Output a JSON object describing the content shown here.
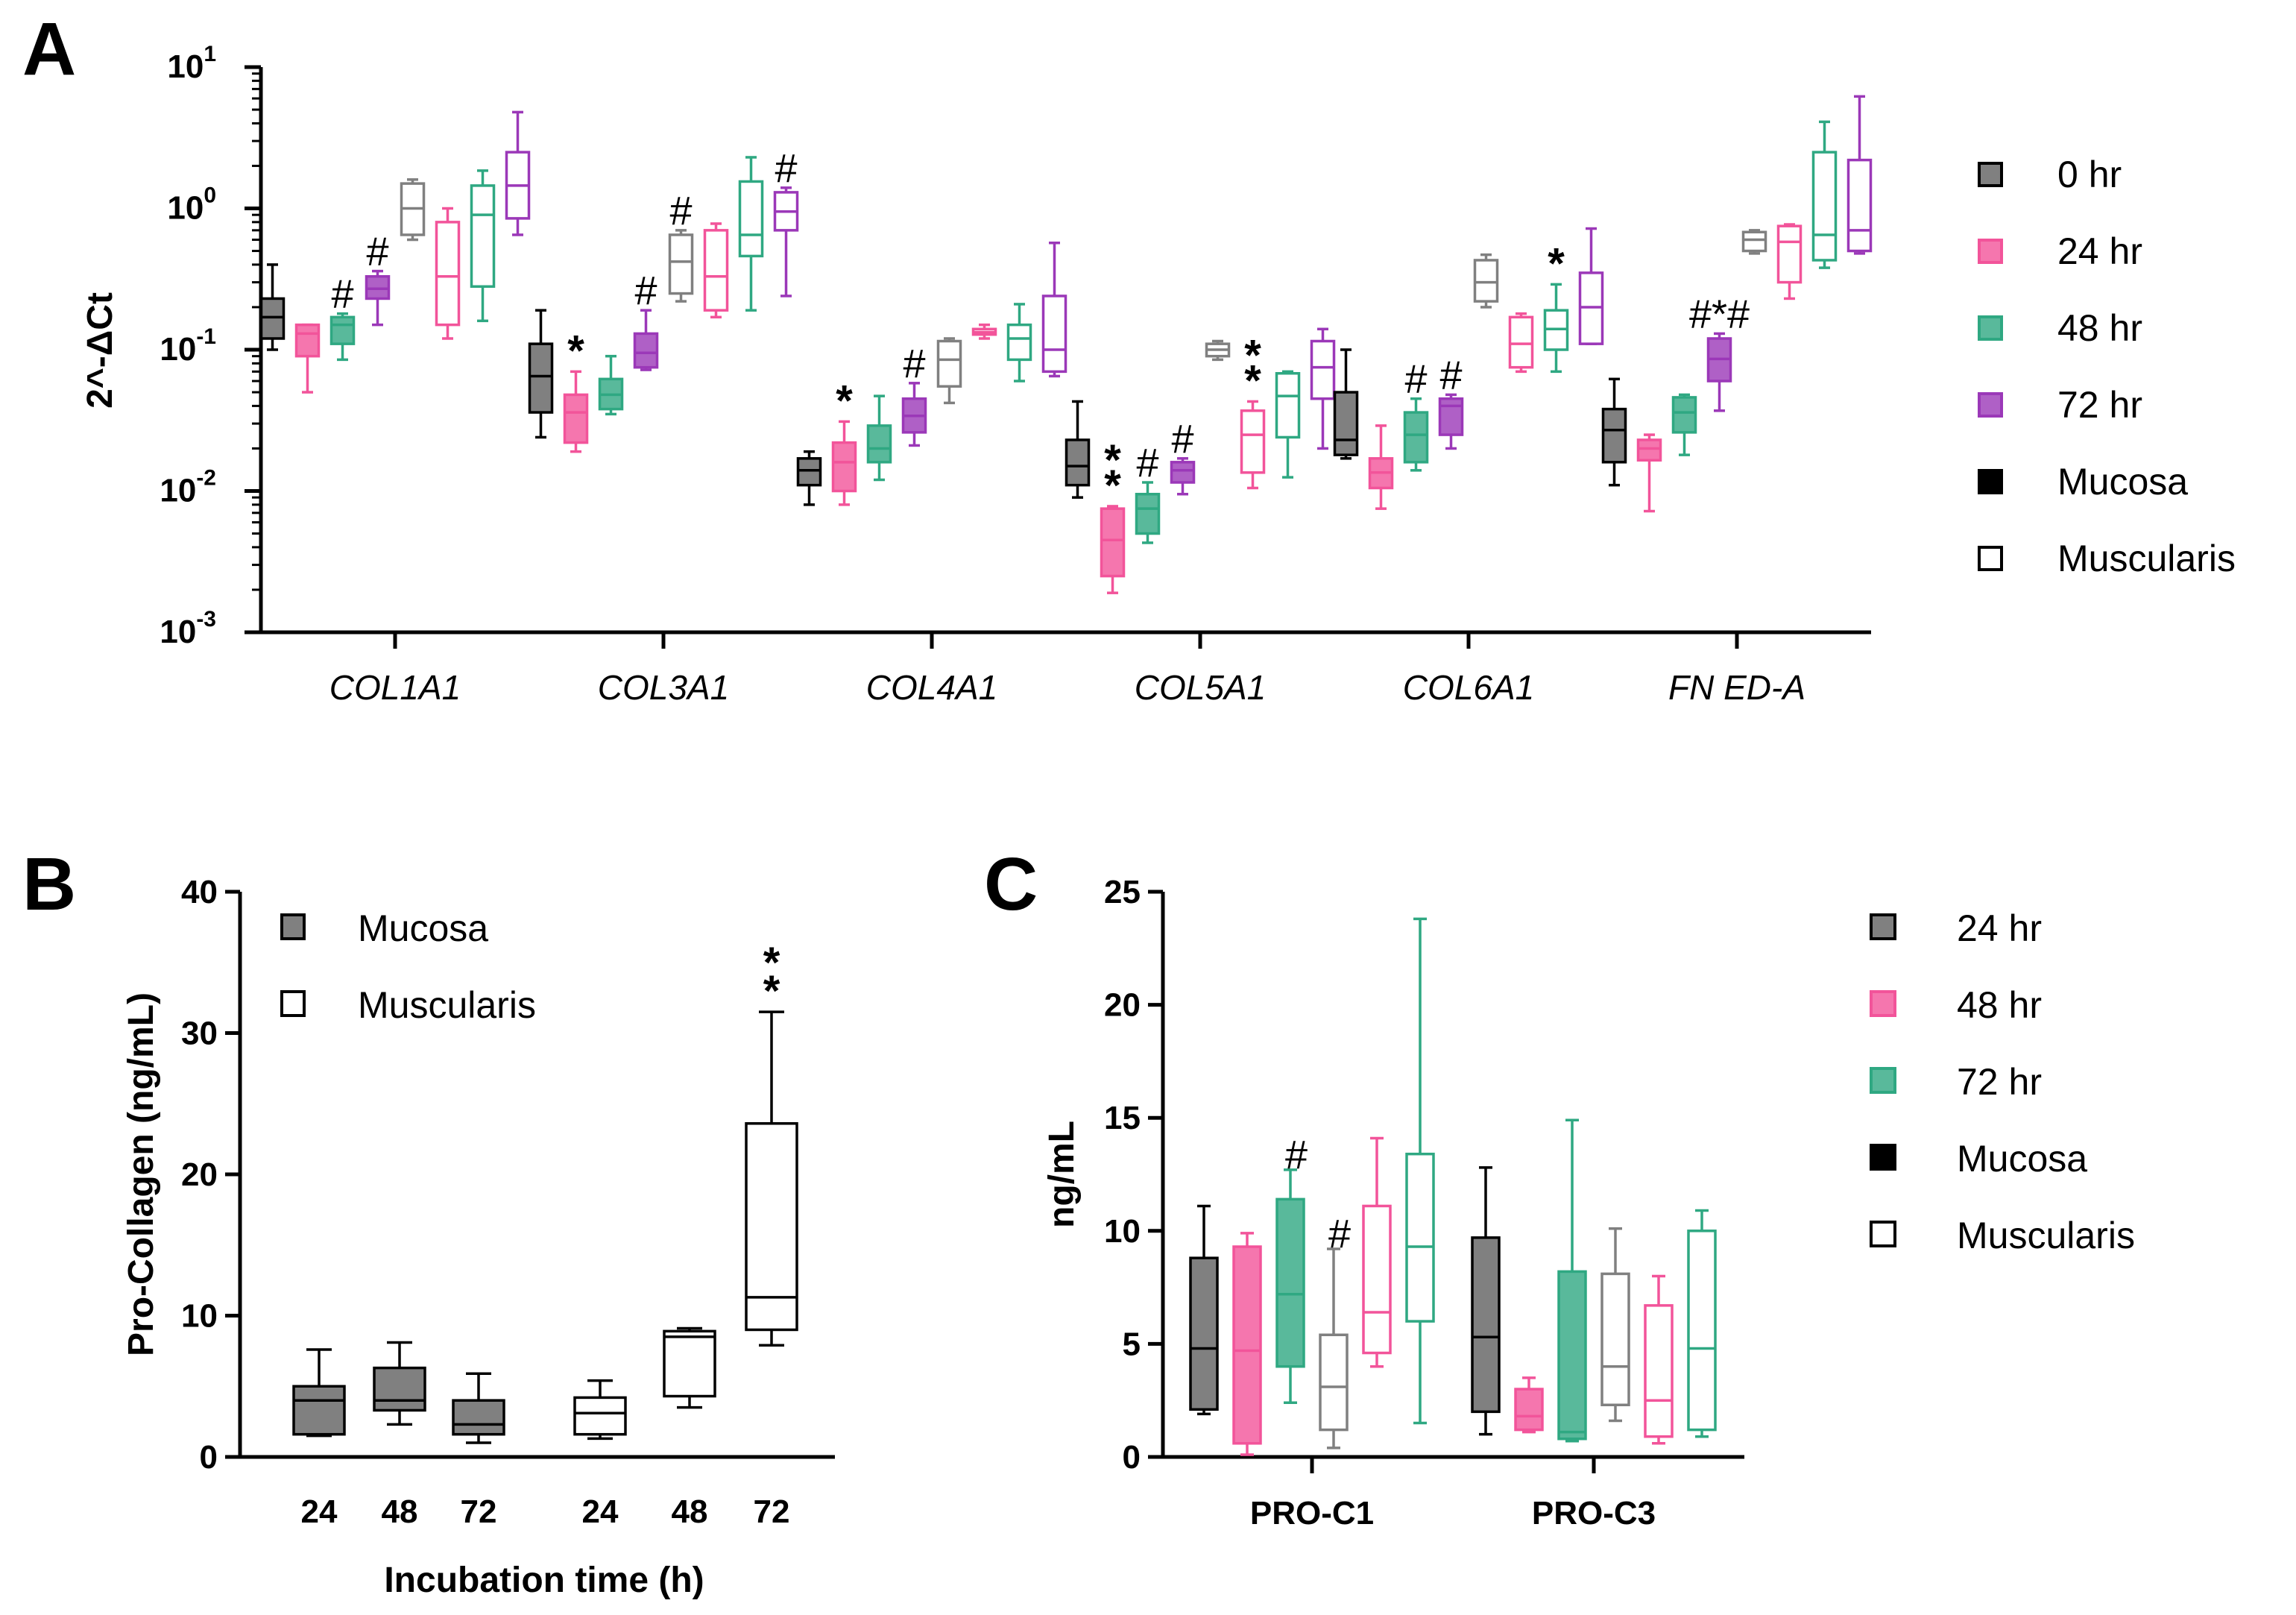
{
  "chart_data": [
    {
      "panel": "A",
      "type": "box",
      "scale": "log10",
      "ylabel": "2^-ΔCt",
      "ylim": [
        0.001,
        10
      ],
      "yticks": [
        {
          "value": 10,
          "base": "10",
          "exp": "1"
        },
        {
          "value": 1,
          "base": "10",
          "exp": "0"
        },
        {
          "value": 0.1,
          "base": "10",
          "exp": "-1"
        },
        {
          "value": 0.01,
          "base": "10",
          "exp": "-2"
        },
        {
          "value": 0.001,
          "base": "10",
          "exp": "-3"
        }
      ],
      "categories": [
        "COL1A1",
        "COL3A1",
        "COL4A1",
        "COL5A1",
        "COL6A1",
        "FN ED-A"
      ],
      "legend": [
        {
          "label": "0 hr",
          "color": "#808080",
          "filled": true
        },
        {
          "label": "24 hr",
          "color": "#f2549a",
          "filled": true
        },
        {
          "label": "48 hr",
          "color": "#2fa882",
          "filled": true
        },
        {
          "label": "72 hr",
          "color": "#9b38b8",
          "filled": true
        },
        {
          "label": "Mucosa",
          "color": "#000000",
          "filled": true
        },
        {
          "label": "Muscularis",
          "color": "#000000",
          "filled": false
        }
      ],
      "series_order": [
        "Mucosa 0 hr",
        "Mucosa 24 hr",
        "Mucosa 48 hr",
        "Mucosa 72 hr",
        "Muscularis 0 hr",
        "Muscularis 24 hr",
        "Muscularis 48 hr",
        "Muscularis 72 hr"
      ],
      "boxes": [
        [
          {
            "min": 0.1,
            "q1": 0.12,
            "median": 0.17,
            "q3": 0.23,
            "max": 0.4,
            "sig": ""
          },
          {
            "min": 0.05,
            "q1": 0.09,
            "median": 0.13,
            "q3": 0.15,
            "max": 0.15,
            "sig": ""
          },
          {
            "min": 0.085,
            "q1": 0.11,
            "median": 0.15,
            "q3": 0.17,
            "max": 0.18,
            "sig": "#"
          },
          {
            "min": 0.15,
            "q1": 0.23,
            "median": 0.27,
            "q3": 0.33,
            "max": 0.36,
            "sig": "#"
          },
          {
            "min": 0.6,
            "q1": 0.65,
            "median": 1.0,
            "q3": 1.5,
            "max": 1.6,
            "sig": ""
          },
          {
            "min": 0.12,
            "q1": 0.15,
            "median": 0.33,
            "q3": 0.8,
            "max": 1.0,
            "sig": ""
          },
          {
            "min": 0.16,
            "q1": 0.28,
            "median": 0.9,
            "q3": 1.45,
            "max": 1.85,
            "sig": ""
          },
          {
            "min": 0.65,
            "q1": 0.85,
            "median": 1.45,
            "q3": 2.5,
            "max": 4.8,
            "sig": ""
          }
        ],
        [
          {
            "min": 0.024,
            "q1": 0.036,
            "median": 0.065,
            "q3": 0.11,
            "max": 0.19,
            "sig": ""
          },
          {
            "min": 0.019,
            "q1": 0.022,
            "median": 0.036,
            "q3": 0.048,
            "max": 0.07,
            "sig": "*"
          },
          {
            "min": 0.035,
            "q1": 0.038,
            "median": 0.048,
            "q3": 0.062,
            "max": 0.09,
            "sig": ""
          },
          {
            "min": 0.072,
            "q1": 0.075,
            "median": 0.095,
            "q3": 0.13,
            "max": 0.19,
            "sig": "#"
          },
          {
            "min": 0.22,
            "q1": 0.25,
            "median": 0.42,
            "q3": 0.65,
            "max": 0.7,
            "sig": "#"
          },
          {
            "min": 0.17,
            "q1": 0.19,
            "median": 0.33,
            "q3": 0.7,
            "max": 0.78,
            "sig": ""
          },
          {
            "min": 0.19,
            "q1": 0.46,
            "median": 0.65,
            "q3": 1.55,
            "max": 2.3,
            "sig": ""
          },
          {
            "min": 0.24,
            "q1": 0.7,
            "median": 0.95,
            "q3": 1.3,
            "max": 1.4,
            "sig": "#"
          }
        ],
        [
          {
            "min": 0.008,
            "q1": 0.011,
            "median": 0.014,
            "q3": 0.017,
            "max": 0.019,
            "sig": ""
          },
          {
            "min": 0.008,
            "q1": 0.01,
            "median": 0.016,
            "q3": 0.022,
            "max": 0.031,
            "sig": "*"
          },
          {
            "min": 0.012,
            "q1": 0.016,
            "median": 0.02,
            "q3": 0.029,
            "max": 0.047,
            "sig": ""
          },
          {
            "min": 0.021,
            "q1": 0.026,
            "median": 0.034,
            "q3": 0.045,
            "max": 0.058,
            "sig": "#"
          },
          {
            "min": 0.042,
            "q1": 0.055,
            "median": 0.085,
            "q3": 0.115,
            "max": 0.12,
            "sig": ""
          },
          {
            "min": 0.12,
            "q1": 0.128,
            "median": 0.133,
            "q3": 0.14,
            "max": 0.15,
            "sig": ""
          },
          {
            "min": 0.06,
            "q1": 0.085,
            "median": 0.12,
            "q3": 0.15,
            "max": 0.21,
            "sig": ""
          },
          {
            "min": 0.065,
            "q1": 0.07,
            "median": 0.1,
            "q3": 0.24,
            "max": 0.57,
            "sig": ""
          }
        ],
        [
          {
            "min": 0.009,
            "q1": 0.011,
            "median": 0.015,
            "q3": 0.023,
            "max": 0.043,
            "sig": ""
          },
          {
            "min": 0.0019,
            "q1": 0.0025,
            "median": 0.0045,
            "q3": 0.0075,
            "max": 0.0078,
            "sig": "**"
          },
          {
            "min": 0.0043,
            "q1": 0.005,
            "median": 0.0075,
            "q3": 0.0095,
            "max": 0.0115,
            "sig": "#"
          },
          {
            "min": 0.0095,
            "q1": 0.0115,
            "median": 0.014,
            "q3": 0.016,
            "max": 0.017,
            "sig": "#"
          },
          {
            "min": 0.085,
            "q1": 0.09,
            "median": 0.1,
            "q3": 0.11,
            "max": 0.115,
            "sig": ""
          },
          {
            "min": 0.0105,
            "q1": 0.0135,
            "median": 0.025,
            "q3": 0.037,
            "max": 0.043,
            "sig": "**"
          },
          {
            "min": 0.0125,
            "q1": 0.024,
            "median": 0.047,
            "q3": 0.068,
            "max": 0.07,
            "sig": ""
          },
          {
            "min": 0.02,
            "q1": 0.045,
            "median": 0.075,
            "q3": 0.115,
            "max": 0.14,
            "sig": ""
          }
        ],
        [
          {
            "min": 0.017,
            "q1": 0.018,
            "median": 0.023,
            "q3": 0.05,
            "max": 0.1,
            "sig": ""
          },
          {
            "min": 0.0075,
            "q1": 0.0105,
            "median": 0.0135,
            "q3": 0.017,
            "max": 0.029,
            "sig": ""
          },
          {
            "min": 0.014,
            "q1": 0.016,
            "median": 0.025,
            "q3": 0.036,
            "max": 0.045,
            "sig": "#"
          },
          {
            "min": 0.02,
            "q1": 0.025,
            "median": 0.04,
            "q3": 0.045,
            "max": 0.048,
            "sig": "#"
          },
          {
            "min": 0.2,
            "q1": 0.22,
            "median": 0.3,
            "q3": 0.43,
            "max": 0.47,
            "sig": ""
          },
          {
            "min": 0.07,
            "q1": 0.075,
            "median": 0.11,
            "q3": 0.17,
            "max": 0.18,
            "sig": ""
          },
          {
            "min": 0.07,
            "q1": 0.1,
            "median": 0.14,
            "q3": 0.19,
            "max": 0.29,
            "sig": "*"
          },
          {
            "min": 0.11,
            "q1": 0.11,
            "median": 0.2,
            "q3": 0.35,
            "max": 0.72,
            "sig": ""
          }
        ],
        [
          {
            "min": 0.011,
            "q1": 0.016,
            "median": 0.027,
            "q3": 0.038,
            "max": 0.062,
            "sig": ""
          },
          {
            "min": 0.0072,
            "q1": 0.0165,
            "median": 0.02,
            "q3": 0.023,
            "max": 0.025,
            "sig": ""
          },
          {
            "min": 0.018,
            "q1": 0.026,
            "median": 0.036,
            "q3": 0.046,
            "max": 0.048,
            "sig": ""
          },
          {
            "min": 0.037,
            "q1": 0.06,
            "median": 0.086,
            "q3": 0.12,
            "max": 0.13,
            "sig": "#*#"
          },
          {
            "min": 0.48,
            "q1": 0.5,
            "median": 0.6,
            "q3": 0.68,
            "max": 0.7,
            "sig": ""
          },
          {
            "min": 0.23,
            "q1": 0.3,
            "median": 0.58,
            "q3": 0.75,
            "max": 0.77,
            "sig": ""
          },
          {
            "min": 0.38,
            "q1": 0.43,
            "median": 0.65,
            "q3": 2.5,
            "max": 4.1,
            "sig": ""
          },
          {
            "min": 0.48,
            "q1": 0.5,
            "median": 0.7,
            "q3": 2.2,
            "max": 6.2,
            "sig": ""
          }
        ]
      ]
    },
    {
      "panel": "B",
      "type": "box",
      "ylabel": "Pro-Collagen (ng/mL)",
      "xlabel": "Incubation time (h)",
      "ylim": [
        0,
        40
      ],
      "yticks": [
        0,
        10,
        20,
        30,
        40
      ],
      "categories": [
        "24",
        "48",
        "72",
        "24",
        "48",
        "72"
      ],
      "groups": [
        "Mucosa",
        "Muscularis"
      ],
      "legend": [
        {
          "label": "Mucosa",
          "color": "#808080",
          "filled": true
        },
        {
          "label": "Muscularis",
          "color": "#000000",
          "filled": false
        }
      ],
      "boxes": [
        {
          "group": "Mucosa",
          "time": "24",
          "min": 1.5,
          "q1": 1.6,
          "median": 4.0,
          "q3": 5.0,
          "max": 7.6,
          "sig": ""
        },
        {
          "group": "Mucosa",
          "time": "48",
          "min": 2.3,
          "q1": 3.3,
          "median": 4.0,
          "q3": 6.3,
          "max": 8.1,
          "sig": ""
        },
        {
          "group": "Mucosa",
          "time": "72",
          "min": 1.0,
          "q1": 1.6,
          "median": 2.3,
          "q3": 4.0,
          "max": 5.9,
          "sig": ""
        },
        {
          "group": "Muscularis",
          "time": "24",
          "min": 1.3,
          "q1": 1.6,
          "median": 3.1,
          "q3": 4.2,
          "max": 5.4,
          "sig": ""
        },
        {
          "group": "Muscularis",
          "time": "48",
          "min": 3.5,
          "q1": 4.3,
          "median": 8.5,
          "q3": 8.9,
          "max": 9.1,
          "sig": ""
        },
        {
          "group": "Muscularis",
          "time": "72",
          "min": 7.9,
          "q1": 9.0,
          "median": 11.3,
          "q3": 23.6,
          "max": 31.5,
          "sig": "**"
        }
      ]
    },
    {
      "panel": "C",
      "type": "box",
      "ylabel": "ng/mL",
      "ylim": [
        0,
        25
      ],
      "yticks": [
        0,
        5,
        10,
        15,
        20,
        25
      ],
      "categories": [
        "PRO-C1",
        "PRO-C3"
      ],
      "legend": [
        {
          "label": "24 hr",
          "color": "#808080",
          "filled": true
        },
        {
          "label": "48 hr",
          "color": "#f2549a",
          "filled": true
        },
        {
          "label": "72 hr",
          "color": "#2fa882",
          "filled": true
        },
        {
          "label": "Mucosa",
          "color": "#000000",
          "filled": true
        },
        {
          "label": "Muscularis",
          "color": "#000000",
          "filled": false
        }
      ],
      "series_order": [
        "Mucosa 24 hr",
        "Mucosa 48 hr",
        "Mucosa 72 hr",
        "Muscularis 24 hr",
        "Muscularis 48 hr",
        "Muscularis 72 hr"
      ],
      "boxes": [
        [
          {
            "min": 1.9,
            "q1": 2.1,
            "median": 4.8,
            "q3": 8.8,
            "max": 11.1,
            "sig": ""
          },
          {
            "min": 0.1,
            "q1": 0.6,
            "median": 4.7,
            "q3": 9.3,
            "max": 9.9,
            "sig": ""
          },
          {
            "min": 2.4,
            "q1": 4.0,
            "median": 7.2,
            "q3": 11.4,
            "max": 12.7,
            "sig": "#"
          },
          {
            "min": 0.4,
            "q1": 1.2,
            "median": 3.1,
            "q3": 5.4,
            "max": 9.2,
            "sig": "#"
          },
          {
            "min": 4.0,
            "q1": 4.6,
            "median": 6.4,
            "q3": 11.1,
            "max": 14.1,
            "sig": ""
          },
          {
            "min": 1.5,
            "q1": 6.0,
            "median": 9.3,
            "q3": 13.4,
            "max": 23.8,
            "sig": ""
          }
        ],
        [
          {
            "min": 1.0,
            "q1": 2.0,
            "median": 5.3,
            "q3": 9.7,
            "max": 12.8,
            "sig": ""
          },
          {
            "min": 1.1,
            "q1": 1.2,
            "median": 1.8,
            "q3": 3.0,
            "max": 3.5,
            "sig": ""
          },
          {
            "min": 0.7,
            "q1": 0.8,
            "median": 1.1,
            "q3": 8.2,
            "max": 14.9,
            "sig": ""
          },
          {
            "min": 1.6,
            "q1": 2.3,
            "median": 4.0,
            "q3": 8.1,
            "max": 10.1,
            "sig": ""
          },
          {
            "min": 0.6,
            "q1": 0.9,
            "median": 2.5,
            "q3": 6.7,
            "max": 8.0,
            "sig": ""
          },
          {
            "min": 0.9,
            "q1": 1.2,
            "median": 4.8,
            "q3": 10.0,
            "max": 10.9,
            "sig": ""
          }
        ]
      ]
    }
  ],
  "panels": {
    "A": "A",
    "B": "B",
    "C": "C"
  }
}
